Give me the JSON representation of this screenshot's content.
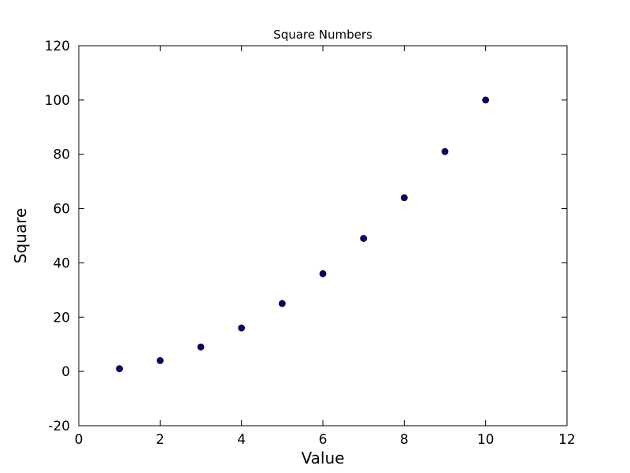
{
  "figure": {
    "background": "#ffffff",
    "frame_color": "#000000"
  },
  "chart_data": {
    "type": "scatter",
    "title": "Square Numbers",
    "xlabel": "Value",
    "ylabel": "Square",
    "x": [
      1,
      2,
      3,
      4,
      5,
      6,
      7,
      8,
      9,
      10
    ],
    "y": [
      1,
      4,
      9,
      16,
      25,
      36,
      49,
      64,
      81,
      100
    ],
    "xlim": [
      0,
      12
    ],
    "ylim": [
      -20,
      120
    ],
    "xticks": [
      0,
      2,
      4,
      6,
      8,
      10,
      12
    ],
    "yticks": [
      -20,
      0,
      20,
      40,
      60,
      80,
      100,
      120
    ],
    "grid": false,
    "legend": false,
    "marker": {
      "shape": "circle",
      "fill": "#000080",
      "edge": "#000000",
      "radius": 4
    }
  }
}
